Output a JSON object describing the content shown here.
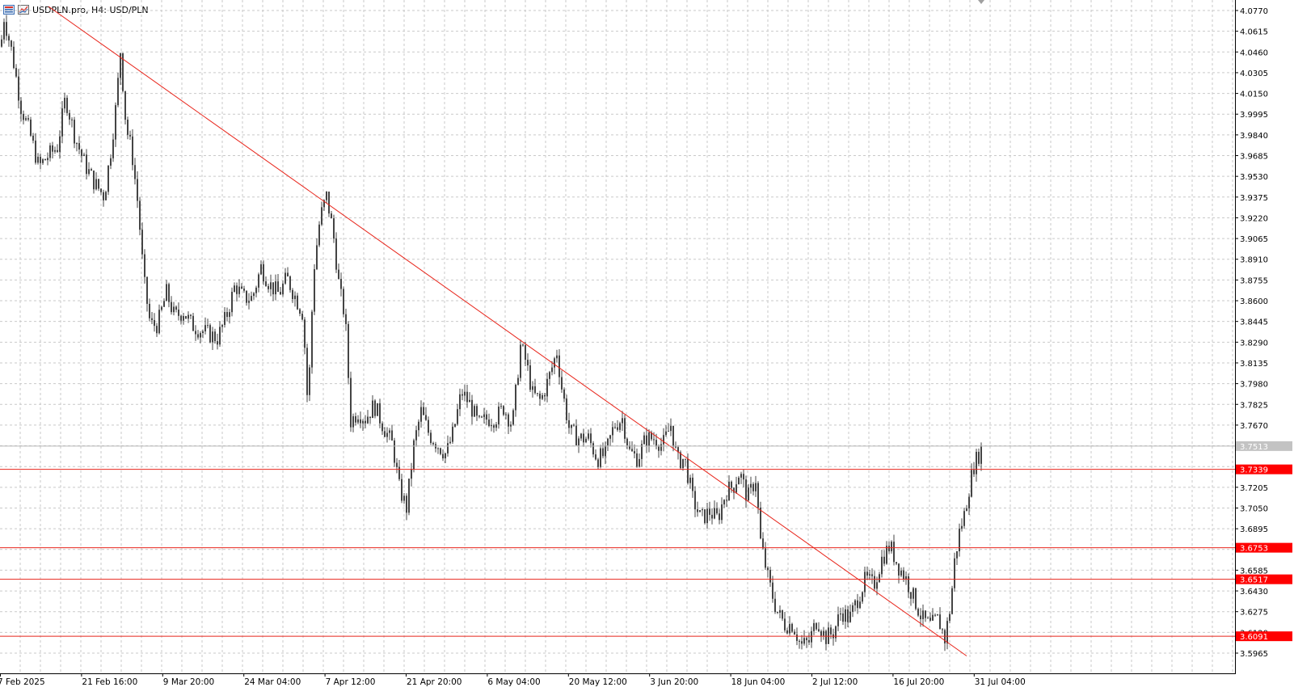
{
  "window": {
    "symbol": "USDPLN.pro",
    "timeframe": "H4",
    "description": "USD/PLN",
    "title_text": "USDPLN.pro, H4:  USD/PLN"
  },
  "colors": {
    "candle": "#444444",
    "level_line": "#e8251b",
    "level_tag_bg": "#ff0000",
    "level_tag_text": "#ffffff",
    "current_price_line": "#b9b9b9",
    "current_price_tag_bg": "#c3c3c3",
    "grid": "#c9c9c9",
    "trend_line": "#e8251b"
  },
  "price_axis": {
    "min": 3.5965,
    "max": 4.077,
    "ticks": [
      "4.0770",
      "4.0615",
      "4.0460",
      "4.0305",
      "4.0150",
      "3.9995",
      "3.9840",
      "3.9685",
      "3.9530",
      "3.9375",
      "3.9220",
      "3.9065",
      "3.8910",
      "3.8755",
      "3.8600",
      "3.8445",
      "3.8290",
      "3.8135",
      "3.7980",
      "3.7825",
      "3.7670",
      "3.7205",
      "3.7050",
      "3.6895",
      "3.6585",
      "3.6430",
      "3.6275",
      "3.6120",
      "3.5965"
    ]
  },
  "time_axis": {
    "labels": [
      "7 Feb 2025",
      "21 Feb 16:00",
      "9 Mar 20:00",
      "24 Mar 04:00",
      "7 Apr 12:00",
      "21 Apr 20:00",
      "6 May 04:00",
      "20 May 12:00",
      "3 Jun 20:00",
      "18 Jun 04:00",
      "2 Jul 12:00",
      "16 Jul 20:00",
      "31 Jul 04:00"
    ]
  },
  "levels": [
    {
      "price": 3.7339,
      "label": "3.7339"
    },
    {
      "price": 3.6753,
      "label": "3.6753"
    },
    {
      "price": 3.6517,
      "label": "3.6517"
    },
    {
      "price": 3.6091,
      "label": "3.6091"
    }
  ],
  "current_price": {
    "price": 3.7513,
    "label": "3.7513"
  },
  "chart_data": {
    "type": "candlestick",
    "symbol": "USDPLN.pro",
    "timeframe": "H4",
    "path": [
      [
        0,
        4.05
      ],
      [
        4,
        4.072
      ],
      [
        14,
        4.045
      ],
      [
        25,
        4.005
      ],
      [
        36,
        3.985
      ],
      [
        47,
        3.96
      ],
      [
        58,
        3.968
      ],
      [
        70,
        3.975
      ],
      [
        80,
        4.012
      ],
      [
        92,
        3.982
      ],
      [
        104,
        3.962
      ],
      [
        116,
        3.948
      ],
      [
        128,
        3.938
      ],
      [
        136,
        3.972
      ],
      [
        143,
        4.008
      ],
      [
        148,
        4.047
      ],
      [
        155,
        3.99
      ],
      [
        162,
        3.972
      ],
      [
        170,
        3.93
      ],
      [
        177,
        3.875
      ],
      [
        185,
        3.842
      ],
      [
        194,
        3.842
      ],
      [
        205,
        3.866
      ],
      [
        215,
        3.848
      ],
      [
        226,
        3.852
      ],
      [
        236,
        3.842
      ],
      [
        247,
        3.838
      ],
      [
        258,
        3.835
      ],
      [
        268,
        3.832
      ],
      [
        279,
        3.848
      ],
      [
        290,
        3.872
      ],
      [
        300,
        3.862
      ],
      [
        311,
        3.862
      ],
      [
        322,
        3.885
      ],
      [
        333,
        3.872
      ],
      [
        344,
        3.865
      ],
      [
        354,
        3.877
      ],
      [
        365,
        3.862
      ],
      [
        374,
        3.85
      ],
      [
        380,
        3.778
      ],
      [
        387,
        3.882
      ],
      [
        395,
        3.922
      ],
      [
        403,
        3.938
      ],
      [
        411,
        3.912
      ],
      [
        419,
        3.868
      ],
      [
        426,
        3.848
      ],
      [
        433,
        3.77
      ],
      [
        442,
        3.777
      ],
      [
        451,
        3.772
      ],
      [
        462,
        3.782
      ],
      [
        474,
        3.765
      ],
      [
        485,
        3.752
      ],
      [
        493,
        3.72
      ],
      [
        502,
        3.705
      ],
      [
        511,
        3.752
      ],
      [
        520,
        3.777
      ],
      [
        530,
        3.76
      ],
      [
        541,
        3.752
      ],
      [
        551,
        3.745
      ],
      [
        560,
        3.762
      ],
      [
        570,
        3.792
      ],
      [
        581,
        3.782
      ],
      [
        591,
        3.767
      ],
      [
        602,
        3.772
      ],
      [
        612,
        3.772
      ],
      [
        622,
        3.78
      ],
      [
        633,
        3.767
      ],
      [
        643,
        3.826
      ],
      [
        650,
        3.814
      ],
      [
        658,
        3.79
      ],
      [
        668,
        3.785
      ],
      [
        678,
        3.802
      ],
      [
        688,
        3.822
      ],
      [
        694,
        3.795
      ],
      [
        704,
        3.762
      ],
      [
        716,
        3.757
      ],
      [
        727,
        3.757
      ],
      [
        738,
        3.742
      ],
      [
        748,
        3.745
      ],
      [
        759,
        3.767
      ],
      [
        769,
        3.772
      ],
      [
        778,
        3.747
      ],
      [
        788,
        3.742
      ],
      [
        798,
        3.757
      ],
      [
        809,
        3.757
      ],
      [
        819,
        3.752
      ],
      [
        829,
        3.767
      ],
      [
        837,
        3.74
      ],
      [
        846,
        3.742
      ],
      [
        856,
        3.712
      ],
      [
        866,
        3.697
      ],
      [
        877,
        3.702
      ],
      [
        887,
        3.697
      ],
      [
        897,
        3.717
      ],
      [
        907,
        3.722
      ],
      [
        914,
        3.732
      ],
      [
        924,
        3.712
      ],
      [
        934,
        3.727
      ],
      [
        940,
        3.68
      ],
      [
        950,
        3.65
      ],
      [
        960,
        3.628
      ],
      [
        970,
        3.618
      ],
      [
        980,
        3.618
      ],
      [
        990,
        3.602
      ],
      [
        1000,
        3.605
      ],
      [
        1010,
        3.622
      ],
      [
        1020,
        3.608
      ],
      [
        1030,
        3.612
      ],
      [
        1040,
        3.628
      ],
      [
        1050,
        3.622
      ],
      [
        1060,
        3.637
      ],
      [
        1070,
        3.652
      ],
      [
        1080,
        3.647
      ],
      [
        1090,
        3.667
      ],
      [
        1100,
        3.677
      ],
      [
        1110,
        3.662
      ],
      [
        1120,
        3.652
      ],
      [
        1130,
        3.637
      ],
      [
        1140,
        3.622
      ],
      [
        1150,
        3.617
      ],
      [
        1160,
        3.622
      ],
      [
        1168,
        3.607
      ],
      [
        1175,
        3.632
      ],
      [
        1180,
        3.665
      ],
      [
        1186,
        3.687
      ],
      [
        1192,
        3.7
      ],
      [
        1198,
        3.72
      ],
      [
        1204,
        3.737
      ],
      [
        1210,
        3.745
      ],
      [
        1214,
        3.75
      ]
    ],
    "trendline": {
      "from": {
        "x_label": "7 Feb 2025",
        "price": 4.078
      },
      "to": {
        "x_label": "31 Jul 04:00",
        "price": 3.598
      }
    }
  }
}
